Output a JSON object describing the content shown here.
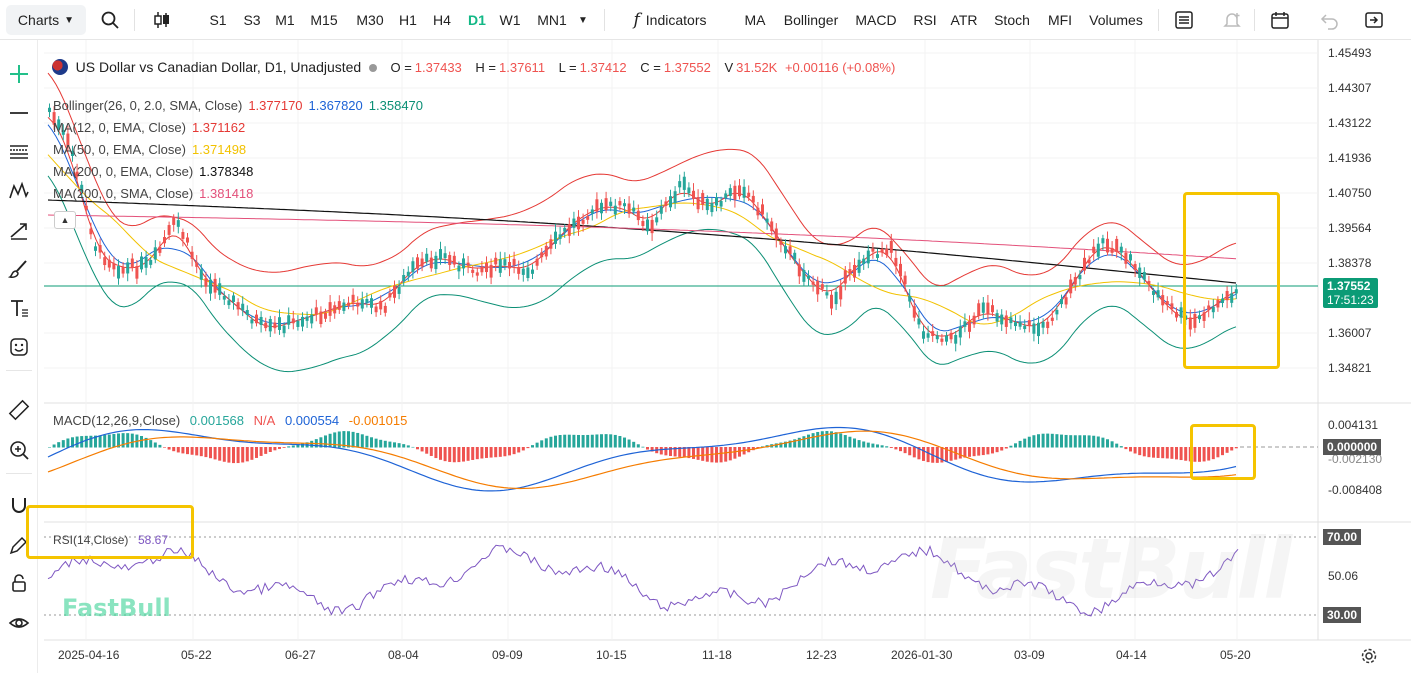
{
  "toolbar": {
    "charts_label": "Charts",
    "timeframes": [
      "S1",
      "S3",
      "M1",
      "M15",
      "M30",
      "H1",
      "H4",
      "D1",
      "W1",
      "MN1"
    ],
    "active_timeframe": "D1",
    "indicators_label": "Indicators",
    "indicator_shortcuts": [
      "MA",
      "Bollinger",
      "MACD",
      "RSI",
      "ATR",
      "Stoch",
      "MFI",
      "Volumes"
    ]
  },
  "symbol_legend": {
    "title": "US Dollar vs Canadian Dollar, D1, Unadjusted",
    "o_label": "O =",
    "o_value": "1.37433",
    "h_label": "H =",
    "h_value": "1.37611",
    "l_label": "L =",
    "l_value": "1.37412",
    "c_label": "C =",
    "c_value": "1.37552",
    "v_label": "V",
    "v_value": "31.52K",
    "change": "+0.00116 (+0.08%)"
  },
  "indicators": [
    {
      "label": "Bollinger(26, 0, 2.0, SMA, Close)",
      "values": [
        "1.377170",
        "1.367820",
        "1.358470"
      ],
      "colors": [
        "#e53935",
        "#1e63d6",
        "#0b8f75"
      ]
    },
    {
      "label": "MA(12, 0, EMA, Close)",
      "values": [
        "1.371162"
      ],
      "colors": [
        "#e53935"
      ]
    },
    {
      "label": "MA(50, 0, EMA, Close)",
      "values": [
        "1.371498"
      ],
      "colors": [
        "#f2c200"
      ]
    },
    {
      "label": "MA(200, 0, EMA, Close)",
      "values": [
        "1.378348"
      ],
      "colors": [
        "#111111"
      ]
    },
    {
      "label": "MA(200, 0, SMA, Close)",
      "values": [
        "1.381418"
      ],
      "colors": [
        "#e3507a"
      ]
    }
  ],
  "macd_legend": {
    "label": "MACD(12,26,9,Close)",
    "v1": "0.001568",
    "v2": "N/A",
    "v3": "0.000554",
    "v4": "-0.001015"
  },
  "rsi_legend": {
    "label": "RSI(14,Close)",
    "value": "58.67"
  },
  "price_axis": [
    "1.45493",
    "1.44307",
    "1.43122",
    "1.41936",
    "1.40750",
    "1.39564",
    "1.38378",
    "1.36007",
    "1.34821"
  ],
  "current_price": "1.37552",
  "countdown": "17:51:23",
  "macd_axis": [
    "0.004131",
    "0.000000",
    "-0.002130",
    "-0.008408"
  ],
  "rsi_axis": [
    "70.00",
    "50.06",
    "30.00"
  ],
  "x_axis": [
    "2025-04-16",
    "05-22",
    "06-27",
    "08-04",
    "09-09",
    "10-15",
    "11-18",
    "12-23",
    "2026-01-30",
    "03-09",
    "04-14",
    "05-20"
  ],
  "watermark": "FastBull",
  "colors": {
    "up": "#26a69a",
    "down": "#ef5350",
    "highlight": "#f5c400",
    "price_line": "#0b9b76",
    "rsi": "#7e57c2"
  }
}
